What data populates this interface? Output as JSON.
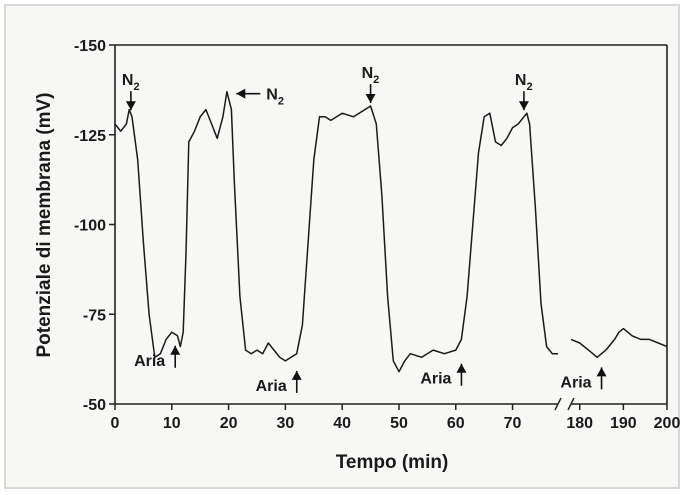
{
  "chart_data": {
    "type": "line",
    "xlabel": "Tempo (min)",
    "ylabel": "Potenziale di membrana (mV)",
    "ylim": [
      -50,
      -150
    ],
    "y_ticks": [
      -150,
      -125,
      -100,
      -75,
      -50
    ],
    "x_segments": [
      {
        "range": [
          0,
          78
        ],
        "ticks": [
          0,
          10,
          20,
          30,
          40,
          50,
          60,
          70
        ]
      },
      {
        "range": [
          178,
          200
        ],
        "ticks": [
          180,
          190,
          200
        ]
      }
    ],
    "grid": false,
    "series": [
      {
        "segment": 0,
        "x": [
          0,
          1,
          2,
          2.5,
          3,
          4,
          5,
          6,
          7,
          8,
          9,
          10,
          11,
          11.5,
          12,
          12.5,
          13,
          14,
          15,
          16,
          17,
          18,
          19,
          19.7,
          20.5,
          21,
          22,
          23,
          24,
          25,
          26,
          27,
          28,
          29,
          30,
          31,
          32,
          33,
          34,
          35,
          36,
          37,
          38,
          40,
          42,
          44,
          45,
          46,
          47,
          48,
          49,
          50,
          51,
          52,
          54,
          56,
          58,
          60,
          61,
          62,
          63,
          64,
          65,
          66,
          67,
          68,
          69,
          70,
          71,
          72,
          72.5,
          73,
          74,
          75,
          76,
          77,
          78
        ],
        "y": [
          -128,
          -126,
          -128,
          -132,
          -130,
          -118,
          -95,
          -75,
          -63,
          -64,
          -68,
          -70,
          -69,
          -66,
          -70,
          -92,
          -123,
          -126,
          -130,
          -132,
          -128,
          -124,
          -130,
          -137,
          -132,
          -112,
          -80,
          -65,
          -64,
          -65,
          -64,
          -67,
          -65,
          -63,
          -62,
          -63,
          -64,
          -72,
          -95,
          -118,
          -130,
          -130,
          -129,
          -131,
          -130,
          -132,
          -133,
          -128,
          -108,
          -80,
          -62,
          -59,
          -62,
          -64,
          -63,
          -65,
          -64,
          -65,
          -68,
          -80,
          -100,
          -120,
          -130,
          -131,
          -123,
          -122,
          -124,
          -127,
          -128,
          -130,
          -131,
          -128,
          -105,
          -78,
          -66,
          -64,
          -64
        ]
      },
      {
        "segment": 1,
        "x": [
          178,
          180,
          182,
          184,
          185,
          186,
          188,
          189,
          190,
          192,
          194,
          196,
          198,
          200
        ],
        "y": [
          -68,
          -67,
          -65,
          -63,
          -64,
          -65,
          -68,
          -70,
          -71,
          -69,
          -68,
          -68,
          -67,
          -66
        ]
      }
    ],
    "annotations": [
      {
        "label": "N",
        "sub": "2",
        "x": 2.8,
        "y": -131
      },
      {
        "label": "N",
        "sub": "2",
        "x": 20.3,
        "y": -137
      },
      {
        "label": "N",
        "sub": "2",
        "x": 45,
        "y": -133
      },
      {
        "label": "N",
        "sub": "2",
        "x": 72,
        "y": -131
      },
      {
        "label": "Aria",
        "x": 10.6,
        "y": -69
      },
      {
        "label": "Aria",
        "x": 32,
        "y": -62
      },
      {
        "label": "Aria",
        "x": 61,
        "y": -64
      },
      {
        "label": "Aria",
        "x": 185,
        "y": -63
      }
    ]
  }
}
